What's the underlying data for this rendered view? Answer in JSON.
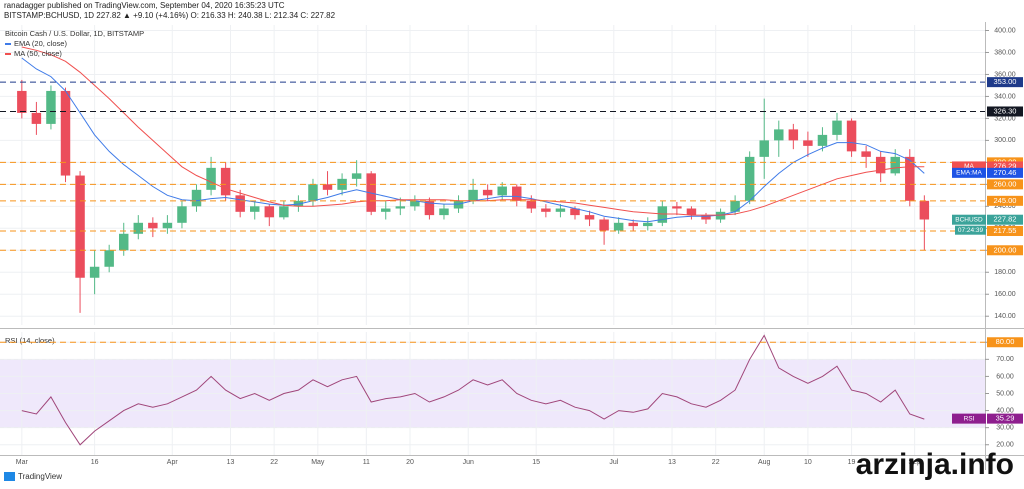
{
  "header": {
    "line1": "ranadagger published on TradingView.com, September 04, 2020 16:35:23 UTC",
    "line2": "BITSTAMP:BCHUSD, 1D  227.82 ▲ +9.10 (+4.16%) O: 216.33 H: 240.38 L: 212.34 C: 227.82"
  },
  "footer": "TradingView",
  "watermark": "arzinja.info",
  "chart_data": [
    {
      "type": "candlestick",
      "title": "Bitcoin Cash / U.S. Dollar, 1D, BITSTAMP",
      "up_color": "#53b987",
      "down_color": "#eb4d5c",
      "grid": true,
      "xlim": [
        -4.5,
        198.5
      ],
      "ylim": [
        132,
        405
      ],
      "yticks": [
        {
          "value": 140,
          "label": "140.00"
        },
        {
          "value": 160,
          "label": "160.00"
        },
        {
          "value": 180,
          "label": "180.00"
        },
        {
          "value": 200,
          "label": "200.00"
        },
        {
          "value": 220,
          "label": "220.00"
        },
        {
          "value": 240,
          "label": "240.00"
        },
        {
          "value": 260,
          "label": "260.00"
        },
        {
          "value": 280,
          "label": "280.00"
        },
        {
          "value": 300,
          "label": "300.00"
        },
        {
          "value": 320,
          "label": "320.00"
        },
        {
          "value": 340,
          "label": "340.00"
        },
        {
          "value": 360,
          "label": "360.00"
        },
        {
          "value": 380,
          "label": "380.00"
        },
        {
          "value": 400,
          "label": "400.00"
        }
      ],
      "x": [
        0,
        3,
        6,
        9,
        12,
        15,
        18,
        21,
        24,
        27,
        30,
        33,
        36,
        39,
        42,
        45,
        48,
        51,
        54,
        57,
        60,
        63,
        66,
        69,
        72,
        75,
        78,
        81,
        84,
        87,
        90,
        93,
        96,
        99,
        102,
        105,
        108,
        111,
        114,
        117,
        120,
        123,
        126,
        129,
        132,
        135,
        138,
        141,
        144,
        147,
        150,
        153,
        156,
        159,
        162,
        165,
        168,
        171,
        174,
        177,
        180,
        183,
        186
      ],
      "ohlc": [
        [
          345,
          355,
          320,
          325
        ],
        [
          325,
          335,
          305,
          315
        ],
        [
          315,
          350,
          310,
          345
        ],
        [
          345,
          348,
          262,
          268
        ],
        [
          268,
          272,
          143,
          175
        ],
        [
          175,
          200,
          160,
          185
        ],
        [
          185,
          205,
          180,
          200
        ],
        [
          200,
          225,
          195,
          215
        ],
        [
          215,
          232,
          210,
          225
        ],
        [
          225,
          230,
          212,
          220
        ],
        [
          220,
          232,
          215,
          225
        ],
        [
          225,
          245,
          220,
          240
        ],
        [
          240,
          260,
          235,
          255
        ],
        [
          255,
          285,
          250,
          275
        ],
        [
          275,
          280,
          245,
          250
        ],
        [
          250,
          255,
          230,
          235
        ],
        [
          235,
          245,
          228,
          240
        ],
        [
          240,
          242,
          222,
          230
        ],
        [
          230,
          245,
          228,
          240
        ],
        [
          240,
          250,
          235,
          245
        ],
        [
          245,
          265,
          240,
          260
        ],
        [
          260,
          272,
          250,
          255
        ],
        [
          255,
          270,
          250,
          265
        ],
        [
          265,
          282,
          258,
          270
        ],
        [
          270,
          272,
          232,
          235
        ],
        [
          235,
          245,
          228,
          238
        ],
        [
          238,
          248,
          232,
          240
        ],
        [
          240,
          250,
          236,
          245
        ],
        [
          245,
          248,
          228,
          232
        ],
        [
          232,
          242,
          228,
          238
        ],
        [
          238,
          250,
          234,
          245
        ],
        [
          245,
          265,
          242,
          255
        ],
        [
          255,
          260,
          245,
          250
        ],
        [
          250,
          262,
          246,
          258
        ],
        [
          258,
          260,
          240,
          245
        ],
        [
          245,
          250,
          234,
          238
        ],
        [
          238,
          242,
          230,
          235
        ],
        [
          235,
          242,
          230,
          238
        ],
        [
          238,
          240,
          228,
          232
        ],
        [
          232,
          236,
          222,
          228
        ],
        [
          228,
          230,
          205,
          218
        ],
        [
          218,
          230,
          215,
          225
        ],
        [
          225,
          228,
          218,
          222
        ],
        [
          222,
          230,
          218,
          225
        ],
        [
          225,
          245,
          222,
          240
        ],
        [
          240,
          244,
          232,
          238
        ],
        [
          238,
          240,
          228,
          232
        ],
        [
          232,
          234,
          224,
          228
        ],
        [
          228,
          238,
          225,
          235
        ],
        [
          235,
          250,
          232,
          245
        ],
        [
          245,
          290,
          242,
          285
        ],
        [
          285,
          338,
          265,
          300
        ],
        [
          300,
          318,
          285,
          310
        ],
        [
          310,
          315,
          292,
          300
        ],
        [
          300,
          308,
          285,
          295
        ],
        [
          295,
          312,
          290,
          305
        ],
        [
          305,
          325,
          300,
          318
        ],
        [
          318,
          320,
          285,
          290
        ],
        [
          290,
          295,
          275,
          285
        ],
        [
          285,
          290,
          262,
          270
        ],
        [
          270,
          292,
          268,
          285
        ],
        [
          285,
          292,
          240,
          245
        ],
        [
          245,
          250,
          200,
          228
        ]
      ],
      "series": [
        {
          "name": "EMA (20, close)",
          "color": "#3f7be8",
          "values": [
            375,
            365,
            358,
            345,
            325,
            305,
            290,
            278,
            268,
            258,
            250,
            246,
            245,
            247,
            248,
            246,
            244,
            242,
            241,
            242,
            245,
            248,
            252,
            255,
            252,
            249,
            246,
            245,
            243,
            242,
            242,
            245,
            247,
            249,
            249,
            247,
            244,
            241,
            238,
            235,
            231,
            229,
            227,
            226,
            228,
            230,
            231,
            231,
            232,
            235,
            245,
            258,
            270,
            280,
            287,
            293,
            298,
            298,
            296,
            290,
            288,
            282,
            270
          ]
        },
        {
          "name": "MA (50, close)",
          "color": "#f0504f",
          "values": [
            385,
            382,
            378,
            372,
            362,
            350,
            338,
            325,
            312,
            300,
            288,
            276,
            268,
            262,
            256,
            252,
            248,
            244,
            241,
            240,
            240,
            241,
            242,
            244,
            245,
            245,
            246,
            246,
            246,
            246,
            245,
            245,
            245,
            246,
            246,
            246,
            245,
            244,
            243,
            241,
            239,
            237,
            235,
            234,
            233,
            233,
            232,
            232,
            232,
            233,
            236,
            240,
            245,
            250,
            255,
            260,
            265,
            268,
            271,
            273,
            275,
            276,
            276
          ]
        }
      ],
      "levels": [
        {
          "value": 353,
          "label": "353.00",
          "color": "#1e3a8a"
        },
        {
          "value": 326.3,
          "label": "326.30",
          "color": "#131722"
        },
        {
          "value": 280,
          "label": "280.00",
          "color": "#f7931a"
        },
        {
          "value": 260,
          "label": "260.00",
          "color": "#f7931a"
        },
        {
          "value": 245,
          "label": "245.00",
          "color": "#f7931a"
        },
        {
          "value": 217.55,
          "label": "217.55",
          "color": "#f7931a"
        },
        {
          "value": 200,
          "label": "200.00",
          "color": "#f7931a"
        }
      ],
      "price_labels": [
        {
          "name": "MA",
          "value": 276.29,
          "label": "276.29",
          "color": "#f0504f"
        },
        {
          "name": "EMA:MA",
          "value": 270.46,
          "label": "270.46",
          "color": "#1e53e5"
        },
        {
          "name": "BCHUSD",
          "value": 227.82,
          "label": "227.82",
          "color": "#3ba39a",
          "countdown": "07:24:39"
        }
      ]
    },
    {
      "type": "line",
      "title": "RSI (14, close)",
      "color": "#a0467a",
      "grid": true,
      "band": [
        30,
        70
      ],
      "band_color": "rgba(155,110,230,0.16)",
      "xlim": [
        -4.5,
        198.5
      ],
      "ylim": [
        14,
        86
      ],
      "xticks": [
        {
          "value": 0,
          "label": "Mar"
        },
        {
          "value": 15,
          "label": "16"
        },
        {
          "value": 31,
          "label": "Apr"
        },
        {
          "value": 43,
          "label": "13"
        },
        {
          "value": 52,
          "label": "22"
        },
        {
          "value": 61,
          "label": "May"
        },
        {
          "value": 71,
          "label": "11"
        },
        {
          "value": 80,
          "label": "20"
        },
        {
          "value": 92,
          "label": "Jun"
        },
        {
          "value": 106,
          "label": "15"
        },
        {
          "value": 122,
          "label": "Jul"
        },
        {
          "value": 134,
          "label": "13"
        },
        {
          "value": 143,
          "label": "22"
        },
        {
          "value": 153,
          "label": "Aug"
        },
        {
          "value": 162,
          "label": "10"
        },
        {
          "value": 171,
          "label": "19"
        },
        {
          "value": 184,
          "label": "Sep"
        }
      ],
      "yticks": [
        {
          "value": 20,
          "label": "20.00"
        },
        {
          "value": 30,
          "label": "30.00"
        },
        {
          "value": 40,
          "label": "40.00"
        },
        {
          "value": 50,
          "label": "50.00"
        },
        {
          "value": 60,
          "label": "60.00"
        },
        {
          "value": 70,
          "label": "70.00"
        },
        {
          "value": 80,
          "label": "80.00"
        }
      ],
      "x": [
        0,
        3,
        6,
        9,
        12,
        15,
        18,
        21,
        24,
        27,
        30,
        33,
        36,
        39,
        42,
        45,
        48,
        51,
        54,
        57,
        60,
        63,
        66,
        69,
        72,
        75,
        78,
        81,
        84,
        87,
        90,
        93,
        96,
        99,
        102,
        105,
        108,
        111,
        114,
        117,
        120,
        123,
        126,
        129,
        132,
        135,
        138,
        141,
        144,
        147,
        150,
        153,
        156,
        159,
        162,
        165,
        168,
        171,
        174,
        177,
        180,
        183,
        186
      ],
      "values": [
        40,
        38,
        48,
        33,
        20,
        28,
        34,
        40,
        44,
        42,
        44,
        48,
        52,
        60,
        52,
        47,
        50,
        46,
        50,
        52,
        58,
        54,
        58,
        60,
        45,
        47,
        48,
        50,
        45,
        48,
        52,
        58,
        55,
        58,
        50,
        46,
        44,
        46,
        42,
        40,
        35,
        40,
        39,
        41,
        50,
        48,
        44,
        42,
        46,
        52,
        70,
        84,
        65,
        60,
        56,
        60,
        66,
        52,
        50,
        45,
        52,
        38,
        35
      ],
      "levels": [
        {
          "value": 80,
          "label": "80.00",
          "color": "#f7931a"
        }
      ],
      "price_labels": [
        {
          "name": "RSI",
          "value": 35.29,
          "label": "35.29",
          "color": "#8e1f8e"
        }
      ]
    }
  ]
}
